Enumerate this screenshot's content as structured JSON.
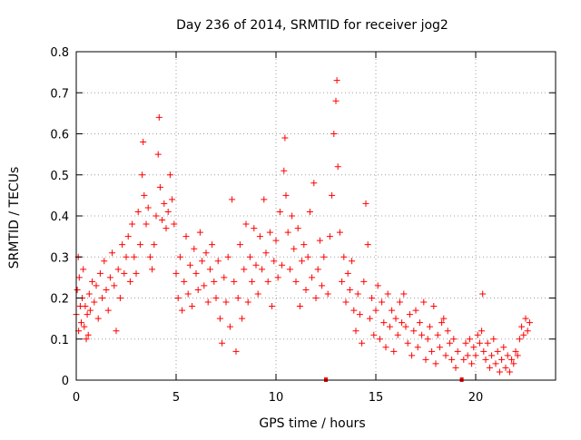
{
  "chart_data": {
    "type": "scatter",
    "title": "Day 236 of 2014, SRMTID for receiver jog2",
    "xlabel": "GPS time / hours",
    "ylabel": "SRMTID / TECUs",
    "xlim": [
      0,
      24
    ],
    "ylim": [
      0,
      0.8
    ],
    "xticks": [
      0,
      5,
      10,
      15,
      20
    ],
    "yticks": [
      0,
      0.1,
      0.2,
      0.3,
      0.4,
      0.5,
      0.6,
      0.7,
      0.8
    ],
    "ytick_labels": [
      "0",
      "0.1",
      "0.2",
      "0.3",
      "0.4",
      "0.5",
      "0.6",
      "0.7",
      "0.8"
    ],
    "grid": true,
    "marker": "+",
    "color": "#ff0000",
    "zero_points_x": [
      12.5,
      19.3
    ],
    "series": [
      {
        "name": "SRMTID",
        "points": [
          [
            0.0,
            0.16
          ],
          [
            0.05,
            0.22
          ],
          [
            0.1,
            0.3
          ],
          [
            0.12,
            0.12
          ],
          [
            0.15,
            0.25
          ],
          [
            0.2,
            0.18
          ],
          [
            0.25,
            0.14
          ],
          [
            0.3,
            0.2
          ],
          [
            0.35,
            0.27
          ],
          [
            0.4,
            0.13
          ],
          [
            0.45,
            0.18
          ],
          [
            0.5,
            0.1
          ],
          [
            0.55,
            0.16
          ],
          [
            0.6,
            0.11
          ],
          [
            0.65,
            0.21
          ],
          [
            0.7,
            0.17
          ],
          [
            0.8,
            0.24
          ],
          [
            0.9,
            0.19
          ],
          [
            1.0,
            0.23
          ],
          [
            1.1,
            0.15
          ],
          [
            1.2,
            0.26
          ],
          [
            1.3,
            0.2
          ],
          [
            1.4,
            0.29
          ],
          [
            1.5,
            0.22
          ],
          [
            1.6,
            0.17
          ],
          [
            1.7,
            0.25
          ],
          [
            1.8,
            0.31
          ],
          [
            1.9,
            0.23
          ],
          [
            2.0,
            0.12
          ],
          [
            2.1,
            0.27
          ],
          [
            2.2,
            0.2
          ],
          [
            2.3,
            0.33
          ],
          [
            2.4,
            0.26
          ],
          [
            2.5,
            0.3
          ],
          [
            2.6,
            0.35
          ],
          [
            2.7,
            0.24
          ],
          [
            2.8,
            0.38
          ],
          [
            2.9,
            0.3
          ],
          [
            3.0,
            0.26
          ],
          [
            3.1,
            0.41
          ],
          [
            3.2,
            0.33
          ],
          [
            3.3,
            0.5
          ],
          [
            3.35,
            0.58
          ],
          [
            3.4,
            0.45
          ],
          [
            3.5,
            0.38
          ],
          [
            3.6,
            0.42
          ],
          [
            3.7,
            0.3
          ],
          [
            3.8,
            0.27
          ],
          [
            3.9,
            0.33
          ],
          [
            4.0,
            0.4
          ],
          [
            4.1,
            0.55
          ],
          [
            4.15,
            0.64
          ],
          [
            4.2,
            0.47
          ],
          [
            4.3,
            0.39
          ],
          [
            4.4,
            0.43
          ],
          [
            4.5,
            0.37
          ],
          [
            4.6,
            0.41
          ],
          [
            4.7,
            0.5
          ],
          [
            4.8,
            0.44
          ],
          [
            4.9,
            0.38
          ],
          [
            5.0,
            0.26
          ],
          [
            5.1,
            0.2
          ],
          [
            5.2,
            0.3
          ],
          [
            5.3,
            0.17
          ],
          [
            5.4,
            0.24
          ],
          [
            5.5,
            0.35
          ],
          [
            5.6,
            0.21
          ],
          [
            5.7,
            0.28
          ],
          [
            5.8,
            0.18
          ],
          [
            5.9,
            0.32
          ],
          [
            6.0,
            0.26
          ],
          [
            6.1,
            0.22
          ],
          [
            6.2,
            0.36
          ],
          [
            6.3,
            0.29
          ],
          [
            6.4,
            0.23
          ],
          [
            6.5,
            0.31
          ],
          [
            6.6,
            0.19
          ],
          [
            6.7,
            0.27
          ],
          [
            6.8,
            0.33
          ],
          [
            6.9,
            0.24
          ],
          [
            7.0,
            0.2
          ],
          [
            7.1,
            0.29
          ],
          [
            7.2,
            0.15
          ],
          [
            7.3,
            0.09
          ],
          [
            7.4,
            0.25
          ],
          [
            7.5,
            0.19
          ],
          [
            7.6,
            0.3
          ],
          [
            7.7,
            0.13
          ],
          [
            7.8,
            0.44
          ],
          [
            7.9,
            0.24
          ],
          [
            8.0,
            0.07
          ],
          [
            8.1,
            0.2
          ],
          [
            8.2,
            0.33
          ],
          [
            8.3,
            0.15
          ],
          [
            8.4,
            0.27
          ],
          [
            8.5,
            0.38
          ],
          [
            8.6,
            0.19
          ],
          [
            8.7,
            0.3
          ],
          [
            8.8,
            0.24
          ],
          [
            8.9,
            0.37
          ],
          [
            9.0,
            0.28
          ],
          [
            9.1,
            0.21
          ],
          [
            9.2,
            0.35
          ],
          [
            9.3,
            0.27
          ],
          [
            9.4,
            0.44
          ],
          [
            9.5,
            0.31
          ],
          [
            9.6,
            0.24
          ],
          [
            9.7,
            0.36
          ],
          [
            9.8,
            0.18
          ],
          [
            9.9,
            0.29
          ],
          [
            10.0,
            0.34
          ],
          [
            10.1,
            0.25
          ],
          [
            10.2,
            0.41
          ],
          [
            10.3,
            0.28
          ],
          [
            10.4,
            0.51
          ],
          [
            10.45,
            0.59
          ],
          [
            10.5,
            0.45
          ],
          [
            10.6,
            0.36
          ],
          [
            10.7,
            0.27
          ],
          [
            10.8,
            0.4
          ],
          [
            10.9,
            0.32
          ],
          [
            11.0,
            0.24
          ],
          [
            11.1,
            0.37
          ],
          [
            11.2,
            0.18
          ],
          [
            11.3,
            0.29
          ],
          [
            11.4,
            0.33
          ],
          [
            11.5,
            0.22
          ],
          [
            11.6,
            0.3
          ],
          [
            11.7,
            0.41
          ],
          [
            11.8,
            0.25
          ],
          [
            11.9,
            0.48
          ],
          [
            12.0,
            0.2
          ],
          [
            12.1,
            0.27
          ],
          [
            12.2,
            0.34
          ],
          [
            12.3,
            0.23
          ],
          [
            12.4,
            0.3
          ],
          [
            12.6,
            0.21
          ],
          [
            12.7,
            0.35
          ],
          [
            12.8,
            0.45
          ],
          [
            12.9,
            0.6
          ],
          [
            13.0,
            0.68
          ],
          [
            13.05,
            0.73
          ],
          [
            13.1,
            0.52
          ],
          [
            13.2,
            0.36
          ],
          [
            13.3,
            0.24
          ],
          [
            13.4,
            0.3
          ],
          [
            13.5,
            0.19
          ],
          [
            13.6,
            0.26
          ],
          [
            13.7,
            0.22
          ],
          [
            13.8,
            0.29
          ],
          [
            13.9,
            0.17
          ],
          [
            14.0,
            0.12
          ],
          [
            14.1,
            0.21
          ],
          [
            14.2,
            0.16
          ],
          [
            14.3,
            0.09
          ],
          [
            14.4,
            0.24
          ],
          [
            14.5,
            0.43
          ],
          [
            14.6,
            0.33
          ],
          [
            14.7,
            0.15
          ],
          [
            14.8,
            0.2
          ],
          [
            14.9,
            0.11
          ],
          [
            15.0,
            0.17
          ],
          [
            15.1,
            0.23
          ],
          [
            15.2,
            0.1
          ],
          [
            15.3,
            0.19
          ],
          [
            15.4,
            0.14
          ],
          [
            15.5,
            0.08
          ],
          [
            15.6,
            0.21
          ],
          [
            15.7,
            0.13
          ],
          [
            15.8,
            0.17
          ],
          [
            15.9,
            0.07
          ],
          [
            16.0,
            0.15
          ],
          [
            16.1,
            0.11
          ],
          [
            16.2,
            0.19
          ],
          [
            16.3,
            0.14
          ],
          [
            16.4,
            0.21
          ],
          [
            16.5,
            0.13
          ],
          [
            16.6,
            0.09
          ],
          [
            16.7,
            0.16
          ],
          [
            16.8,
            0.06
          ],
          [
            16.9,
            0.12
          ],
          [
            17.0,
            0.17
          ],
          [
            17.1,
            0.08
          ],
          [
            17.2,
            0.14
          ],
          [
            17.3,
            0.11
          ],
          [
            17.4,
            0.19
          ],
          [
            17.5,
            0.05
          ],
          [
            17.6,
            0.1
          ],
          [
            17.7,
            0.13
          ],
          [
            17.8,
            0.07
          ],
          [
            17.9,
            0.18
          ],
          [
            18.0,
            0.04
          ],
          [
            18.1,
            0.11
          ],
          [
            18.2,
            0.08
          ],
          [
            18.3,
            0.14
          ],
          [
            18.4,
            0.15
          ],
          [
            18.5,
            0.06
          ],
          [
            18.6,
            0.12
          ],
          [
            18.7,
            0.09
          ],
          [
            18.8,
            0.05
          ],
          [
            18.9,
            0.1
          ],
          [
            19.0,
            0.03
          ],
          [
            19.1,
            0.07
          ],
          [
            19.4,
            0.05
          ],
          [
            19.5,
            0.09
          ],
          [
            19.6,
            0.06
          ],
          [
            19.7,
            0.1
          ],
          [
            19.8,
            0.04
          ],
          [
            19.9,
            0.08
          ],
          [
            20.0,
            0.06
          ],
          [
            20.1,
            0.11
          ],
          [
            20.2,
            0.09
          ],
          [
            20.3,
            0.12
          ],
          [
            20.35,
            0.21
          ],
          [
            20.4,
            0.07
          ],
          [
            20.5,
            0.05
          ],
          [
            20.6,
            0.09
          ],
          [
            20.7,
            0.03
          ],
          [
            20.8,
            0.06
          ],
          [
            20.9,
            0.1
          ],
          [
            21.0,
            0.04
          ],
          [
            21.1,
            0.07
          ],
          [
            21.2,
            0.02
          ],
          [
            21.3,
            0.05
          ],
          [
            21.4,
            0.08
          ],
          [
            21.5,
            0.03
          ],
          [
            21.6,
            0.06
          ],
          [
            21.7,
            0.02
          ],
          [
            21.8,
            0.05
          ],
          [
            21.9,
            0.04
          ],
          [
            22.0,
            0.07
          ],
          [
            22.1,
            0.06
          ],
          [
            22.2,
            0.1
          ],
          [
            22.3,
            0.13
          ],
          [
            22.4,
            0.11
          ],
          [
            22.5,
            0.15
          ],
          [
            22.6,
            0.12
          ],
          [
            22.7,
            0.14
          ]
        ]
      }
    ]
  }
}
